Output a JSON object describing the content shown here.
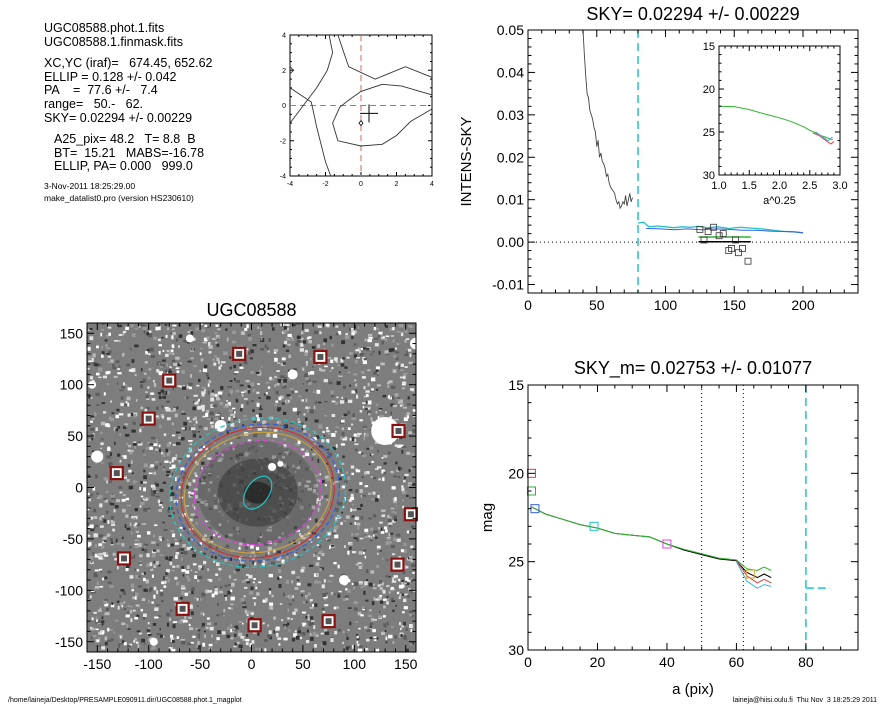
{
  "info": {
    "lines_a": [
      "UGC08588.phot.1.fits",
      "UGC08588.1.finmask.fits"
    ],
    "lines_b": [
      "XC,YC (iraf)=   674.45, 652.62",
      "ELLIP = 0.128 +/- 0.042",
      "PA    =  77.6 +/-   7.4",
      "range=   50.-   62.",
      "SKY= 0.02294 +/- 0.00229"
    ],
    "lines_c": [
      "A25_pix= 48.2   T= 8.8  B",
      "BT=  15.21   MABS=-16.78",
      "ELLIP, PA= 0.000   999.0"
    ],
    "date": "3-Nov-2011 18:25:29.00",
    "program": "make_datalist0.pro (version HS230610)"
  },
  "footer": {
    "left": "/home/laineja/Desktop/PRESAMPLE090911.dir/UGC08588.phot.1_magplot",
    "right": "laineja@hiisi.oulu.fi  Thu Nov  3 18:25:29 2011"
  },
  "chart_data": [
    {
      "id": "center-panel",
      "type": "line",
      "title": "",
      "xlim": [
        -4,
        4
      ],
      "ylim": [
        -4,
        4
      ],
      "xticks": [
        -4,
        -2,
        0,
        2,
        4
      ],
      "yticks": [
        -4,
        -2,
        0,
        2,
        4
      ],
      "xtick_labels": [
        "-4",
        "-2",
        "0",
        "2",
        "4"
      ],
      "ytick_labels": [
        "-4",
        "-2",
        "0",
        "2",
        "4"
      ],
      "contours": [
        [
          [
            -1.8,
            4.0
          ],
          [
            -1.6,
            3.0
          ],
          [
            -1.9,
            2.0
          ],
          [
            -2.5,
            1.0
          ],
          [
            -4.0,
            -1.0
          ]
        ],
        [
          [
            -4.0,
            1.0
          ],
          [
            -2.8,
            0.2
          ],
          [
            -2.5,
            -1.2
          ],
          [
            -2.0,
            -3.2
          ],
          [
            -1.7,
            -4.0
          ]
        ],
        [
          [
            -1.3,
            4.0
          ],
          [
            -0.7,
            2.2
          ],
          [
            0.8,
            1.5
          ],
          [
            2.5,
            2.2
          ],
          [
            4.0,
            1.6
          ]
        ],
        [
          [
            4.0,
            -0.2
          ],
          [
            2.8,
            -0.9
          ],
          [
            2.0,
            -1.7
          ],
          [
            1.2,
            -2.2
          ],
          [
            0.0,
            -2.3
          ],
          [
            -1.3,
            -2.0
          ],
          [
            -1.6,
            -1.0
          ],
          [
            -1.2,
            -0.1
          ],
          [
            -0.7,
            0.3
          ],
          [
            0.0,
            0.8
          ],
          [
            1.2,
            1.2
          ],
          [
            2.3,
            1.1
          ],
          [
            4.0,
            0.6
          ]
        ],
        [
          [
            -4.0,
            2.2
          ],
          [
            -3.8,
            2.0
          ],
          [
            -4.0,
            1.8
          ]
        ]
      ],
      "cross": [
        0.45,
        -0.45
      ],
      "diamond": [
        0.0,
        -1.0
      ],
      "dashed_lines": {
        "x": 0,
        "y": 0,
        "color": "#e06060"
      }
    },
    {
      "id": "intens-sky",
      "type": "line",
      "title": "SKY= 0.02294 +/- 0.00229",
      "xlabel": "",
      "ylabel": "INTENS-SKY",
      "xlim": [
        0,
        240
      ],
      "ylim": [
        -0.012,
        0.05
      ],
      "xticks": [
        0,
        50,
        100,
        150,
        200
      ],
      "yticks": [
        -0.01,
        0.0,
        0.01,
        0.02,
        0.03,
        0.04,
        0.05
      ],
      "ytick_labels": [
        "-0.01",
        "0.00",
        "0.01",
        "0.02",
        "0.03",
        "0.04",
        "0.05"
      ],
      "profile": [
        [
          40,
          0.05
        ],
        [
          41,
          0.044
        ],
        [
          42,
          0.039
        ],
        [
          43,
          0.035
        ],
        [
          44,
          0.034
        ],
        [
          45,
          0.031
        ],
        [
          46,
          0.03
        ],
        [
          47,
          0.029
        ],
        [
          48,
          0.027
        ],
        [
          49,
          0.026
        ],
        [
          50,
          0.0225
        ],
        [
          51,
          0.024
        ],
        [
          52,
          0.02
        ],
        [
          53,
          0.021
        ],
        [
          54,
          0.019
        ],
        [
          55,
          0.0185
        ],
        [
          56,
          0.0175
        ],
        [
          57,
          0.0155
        ],
        [
          58,
          0.016
        ],
        [
          59,
          0.014
        ],
        [
          60,
          0.013
        ],
        [
          61,
          0.0125
        ],
        [
          62,
          0.012
        ],
        [
          63,
          0.0115
        ],
        [
          64,
          0.01
        ],
        [
          65,
          0.009
        ],
        [
          66,
          0.0095
        ],
        [
          67,
          0.008
        ],
        [
          68,
          0.0085
        ],
        [
          69,
          0.0095
        ],
        [
          70,
          0.009
        ],
        [
          71,
          0.011
        ],
        [
          72,
          0.0085
        ],
        [
          73,
          0.01
        ],
        [
          74,
          0.0115
        ],
        [
          75,
          0.0095
        ],
        [
          76,
          0.0105
        ]
      ],
      "sky_cyan": [
        [
          80,
          0.0045
        ],
        [
          84,
          0.0047
        ],
        [
          88,
          0.0036
        ],
        [
          94,
          0.0038
        ],
        [
          100,
          0.0036
        ],
        [
          106,
          0.0034
        ],
        [
          112,
          0.0036
        ],
        [
          118,
          0.0035
        ],
        [
          124,
          0.0037
        ],
        [
          130,
          0.0034
        ],
        [
          138,
          0.0036
        ],
        [
          146,
          0.0032
        ],
        [
          154,
          0.0035
        ],
        [
          162,
          0.0033
        ],
        [
          170,
          0.0031
        ],
        [
          178,
          0.0028
        ],
        [
          186,
          0.0025
        ],
        [
          192,
          0.0025
        ],
        [
          200,
          0.0022
        ]
      ],
      "sky_blue": [
        [
          86,
          0.0032
        ],
        [
          96,
          0.0031
        ],
        [
          106,
          0.0029
        ],
        [
          116,
          0.0031
        ],
        [
          126,
          0.0029
        ],
        [
          136,
          0.0031
        ],
        [
          146,
          0.003
        ],
        [
          156,
          0.0028
        ],
        [
          166,
          0.0028
        ],
        [
          176,
          0.0026
        ],
        [
          186,
          0.0025
        ],
        [
          196,
          0.0023
        ],
        [
          200,
          0.0022
        ]
      ],
      "sky_green": [
        [
          124,
          0.0012
        ],
        [
          150,
          0.0012
        ],
        [
          162,
          0.0012
        ]
      ],
      "sky_black": [
        [
          124,
          0.0001
        ],
        [
          162,
          0.0001
        ]
      ],
      "squares": [
        [
          125,
          0.003
        ],
        [
          128,
          0.0005
        ],
        [
          131,
          0.0025
        ],
        [
          135,
          0.0035
        ],
        [
          139,
          0.0015
        ],
        [
          142,
          0.002
        ],
        [
          146,
          -0.002
        ],
        [
          148,
          -0.0015
        ],
        [
          151,
          0.0005
        ],
        [
          153,
          -0.0025
        ],
        [
          156,
          -0.0015
        ],
        [
          160,
          -0.0045
        ]
      ],
      "vline": 80,
      "inset": {
        "xlabel": "a^0.25",
        "xlim": [
          1.0,
          3.0
        ],
        "ylim": [
          15,
          30
        ],
        "y_reversed": true,
        "xticks": [
          1.0,
          1.5,
          2.0,
          2.5,
          3.0
        ],
        "xtick_labels": [
          "1.0",
          "1.5",
          "2.0",
          "2.5",
          "3.0"
        ],
        "yticks": [
          15,
          20,
          25,
          30
        ],
        "ytick_labels": [
          "15",
          "20",
          "25",
          "30"
        ],
        "series": [
          {
            "color": "#2db52d",
            "points": [
              [
                1.0,
                22.0
              ],
              [
                1.25,
                22.05
              ],
              [
                1.5,
                22.4
              ],
              [
                1.75,
                22.9
              ],
              [
                2.0,
                23.35
              ],
              [
                2.2,
                23.8
              ],
              [
                2.4,
                24.4
              ],
              [
                2.5,
                24.8
              ],
              [
                2.6,
                25.1
              ],
              [
                2.7,
                25.45
              ],
              [
                2.8,
                25.7
              ],
              [
                2.88,
                25.9
              ]
            ]
          },
          {
            "color": "#e04040",
            "points": [
              [
                2.55,
                25.1
              ],
              [
                2.65,
                25.4
              ],
              [
                2.75,
                25.9
              ],
              [
                2.85,
                26.4
              ],
              [
                2.9,
                26.1
              ]
            ]
          },
          {
            "color": "#40b0e0",
            "points": [
              [
                2.6,
                25.0
              ],
              [
                2.7,
                25.5
              ],
              [
                2.8,
                26.0
              ],
              [
                2.88,
                25.6
              ]
            ]
          }
        ]
      }
    },
    {
      "id": "galaxy-image",
      "type": "scatter",
      "title": "UGC08588",
      "xlim": [
        -160,
        160
      ],
      "ylim": [
        -160,
        160
      ],
      "xticks": [
        -150,
        -100,
        -50,
        0,
        50,
        100,
        150
      ],
      "yticks": [
        -150,
        -100,
        -50,
        0,
        50,
        100,
        150
      ],
      "xtick_labels": [
        "-150",
        "-100",
        "-50",
        "0",
        "50",
        "100",
        "150"
      ],
      "ytick_labels": [
        "-150",
        "-100",
        "-50",
        "0",
        "50",
        "100",
        "150"
      ],
      "masked_stars": [
        [
          -12,
          130
        ],
        [
          67,
          127
        ],
        [
          -80,
          104
        ],
        [
          -100,
          67
        ],
        [
          143,
          55
        ],
        [
          -131,
          14
        ],
        [
          155,
          -26
        ],
        [
          -124,
          -69
        ],
        [
          142,
          -75
        ],
        [
          -67,
          -118
        ],
        [
          3,
          -134
        ],
        [
          75,
          -130
        ]
      ],
      "ellipses": [
        {
          "a": 18,
          "b": 11,
          "angle": -55,
          "color": "#22c4c4",
          "dashed": false
        },
        {
          "a": 62,
          "b": 50,
          "angle": -12,
          "color": "#e040e0",
          "dashed": true
        },
        {
          "a": 72,
          "b": 58,
          "angle": -12,
          "color": "#c8a040",
          "dashed": false
        },
        {
          "a": 75,
          "b": 63,
          "angle": -12,
          "color": "#d03030",
          "dashed": false
        },
        {
          "a": 80,
          "b": 66,
          "angle": -12,
          "color": "#3060e0",
          "dashed": true
        },
        {
          "a": 86,
          "b": 72,
          "angle": -12,
          "color": "#22c4c4",
          "dashed": true
        }
      ]
    },
    {
      "id": "magnitude-profile",
      "type": "line",
      "title": "SKY_m=  0.02753 +/- 0.01077",
      "xlabel": "a (pix)",
      "ylabel": "mag",
      "xlim": [
        0,
        95
      ],
      "ylim": [
        15,
        30
      ],
      "y_reversed": true,
      "xticks": [
        0,
        20,
        40,
        60,
        80
      ],
      "yticks": [
        15,
        20,
        25,
        30
      ],
      "xtick_labels": [
        "0",
        "20",
        "40",
        "60",
        "80"
      ],
      "ytick_labels": [
        "15",
        "20",
        "25",
        "30"
      ],
      "vlines_dotted": [
        50,
        62
      ],
      "cyan_vline": 80,
      "cyan_hline": {
        "x": [
          80,
          87
        ],
        "y": 26.5
      },
      "profiles": [
        {
          "color": "#000000",
          "points": [
            [
              1,
              21.9
            ],
            [
              5,
              22.3
            ],
            [
              10,
              22.6
            ],
            [
              15,
              22.9
            ],
            [
              20,
              23.1
            ],
            [
              25,
              23.4
            ],
            [
              30,
              23.5
            ],
            [
              35,
              23.6
            ],
            [
              40,
              24.0
            ],
            [
              45,
              24.35
            ],
            [
              50,
              24.6
            ],
            [
              55,
              24.85
            ],
            [
              60,
              24.95
            ],
            [
              63,
              25.6
            ],
            [
              66,
              25.9
            ],
            [
              68,
              25.7
            ],
            [
              70,
              25.9
            ]
          ]
        },
        {
          "color": "#2db52d",
          "points": [
            [
              1,
              21.9
            ],
            [
              5,
              22.3
            ],
            [
              10,
              22.6
            ],
            [
              15,
              22.9
            ],
            [
              20,
              23.1
            ],
            [
              25,
              23.4
            ],
            [
              30,
              23.5
            ],
            [
              35,
              23.6
            ],
            [
              40,
              24.0
            ],
            [
              45,
              24.3
            ],
            [
              50,
              24.55
            ],
            [
              55,
              24.8
            ],
            [
              60,
              24.9
            ],
            [
              63,
              25.4
            ],
            [
              66,
              25.5
            ],
            [
              68,
              25.3
            ],
            [
              70,
              25.5
            ]
          ]
        },
        {
          "color": "#e04040",
          "points": [
            [
              60,
              24.95
            ],
            [
              63,
              25.8
            ],
            [
              66,
              26.2
            ],
            [
              68,
              26.0
            ],
            [
              70,
              26.2
            ]
          ]
        },
        {
          "color": "#40b0e0",
          "points": [
            [
              60,
              25.0
            ],
            [
              63,
              26.1
            ],
            [
              66,
              26.5
            ],
            [
              68,
              26.3
            ],
            [
              70,
              26.4
            ]
          ]
        }
      ],
      "squares": [
        {
          "x": 1,
          "y": 20.0,
          "color": "#e04040"
        },
        {
          "x": 1,
          "y": 21.0,
          "color": "#2db52d"
        },
        {
          "x": 2,
          "y": 22.0,
          "color": "#3060e0"
        },
        {
          "x": 19,
          "y": 23.0,
          "color": "#22c4c4"
        },
        {
          "x": 40,
          "y": 24.0,
          "color": "#e040e0"
        },
        {
          "x": 64,
          "y": 25.7,
          "color": "#e0a030"
        }
      ]
    }
  ]
}
